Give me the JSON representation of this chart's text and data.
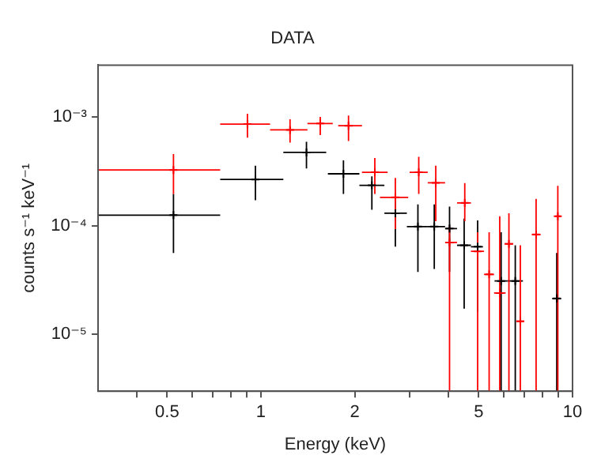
{
  "chart_data": {
    "type": "scatter",
    "title": "DATA",
    "xlabel": "Energy (keV)",
    "ylabel": "counts s⁻¹ keV⁻¹",
    "log": "xy",
    "grid": false,
    "legend": false,
    "marker": "cross",
    "xlim": [
      0.3,
      10
    ],
    "xticks": [
      {
        "value": 0.4,
        "label": null
      },
      0.5,
      {
        "value": 0.6,
        "label": null
      },
      {
        "value": 0.7,
        "label": null
      },
      {
        "value": 0.8,
        "label": null
      },
      {
        "value": 0.9,
        "label": null
      },
      1,
      2,
      {
        "value": 3,
        "label": null
      },
      {
        "value": 4,
        "label": null
      },
      5,
      {
        "value": 6,
        "label": null
      },
      {
        "value": 7,
        "label": null
      },
      {
        "value": 8,
        "label": null
      },
      {
        "value": 9,
        "label": null
      },
      10
    ],
    "ylim": [
      3e-06,
      0.003
    ],
    "yticks": [
      {
        "value": 1e-05,
        "label": "10⁻⁵"
      },
      {
        "value": 0.0001,
        "label": "10⁻⁴"
      },
      {
        "value": 0.001,
        "label": "10⁻³"
      }
    ],
    "series": [
      {
        "color": "#000000",
        "x": [
          0.524,
          0.96,
          1.4,
          1.84,
          2.27,
          2.7,
          3.19,
          3.6,
          4.03,
          4.49,
          4.96,
          5.9,
          6.55,
          8.9
        ],
        "values": [
          0.000125,
          0.000266,
          0.000472,
          0.0003,
          0.000235,
          0.00013,
          9.8e-05,
          9.8e-05,
          9.4e-05,
          6.6e-05,
          6.4e-05,
          3.1e-05,
          3.1e-05,
          2.14e-05
        ],
        "xerrors": [
          [
            0.3,
            0.74
          ],
          [
            0.74,
            1.18
          ],
          [
            1.18,
            1.62
          ],
          [
            1.64,
            2.07
          ],
          [
            2.07,
            2.49
          ],
          [
            2.49,
            2.94
          ],
          [
            2.94,
            3.43
          ],
          [
            3.43,
            3.9
          ],
          [
            3.9,
            4.26
          ],
          [
            4.26,
            4.72
          ],
          [
            4.72,
            5.16
          ],
          [
            5.62,
            6.18
          ],
          [
            6.18,
            6.93
          ],
          [
            8.6,
            9.2
          ]
        ],
        "errors": [
          [
            5.6e-05,
            0.000196
          ],
          [
            0.000171,
            0.000356
          ],
          [
            0.000336,
            0.00059
          ],
          [
            0.000196,
            0.000398
          ],
          [
            0.00014,
            0.000284
          ],
          [
            6.4e-05,
            0.000181
          ],
          [
            3.75e-05,
            0.000157
          ],
          [
            4e-05,
            0.000157
          ],
          [
            3.75e-05,
            0.00015
          ],
          [
            1.72e-05,
            0.000116
          ],
          [
            1.62e-05,
            0.000112
          ],
          [
            3e-06,
            8.7e-05
          ],
          [
            3e-06,
            6.6e-05
          ],
          [
            3e-06,
            5.6e-05
          ]
        ]
      },
      {
        "color": "#ff0000",
        "x": [
          0.524,
          0.905,
          1.24,
          1.55,
          1.91,
          2.32,
          2.7,
          3.21,
          3.64,
          4.03,
          4.51,
          4.96,
          5.4,
          5.84,
          6.25,
          6.8,
          7.64,
          8.97
        ],
        "values": [
          0.000325,
          0.00086,
          0.00076,
          0.00087,
          0.00083,
          0.00031,
          0.000182,
          0.00031,
          0.000248,
          7e-05,
          0.000162,
          5.8e-05,
          3.56e-05,
          2.4e-05,
          6.8e-05,
          1.32e-05,
          8.3e-05,
          0.000122
        ],
        "xerrors": [
          [
            0.3,
            0.74
          ],
          [
            0.74,
            1.07
          ],
          [
            1.07,
            1.41
          ],
          [
            1.41,
            1.7
          ],
          [
            1.77,
            2.11
          ],
          [
            2.11,
            2.55
          ],
          [
            2.41,
            2.97
          ],
          [
            3.0,
            3.43
          ],
          [
            3.43,
            3.9
          ],
          [
            3.9,
            4.26
          ],
          [
            4.26,
            4.72
          ],
          [
            4.72,
            5.2
          ],
          [
            5.2,
            5.6
          ],
          [
            5.6,
            6.1
          ],
          [
            6.05,
            6.45
          ],
          [
            6.6,
            7.0
          ],
          [
            7.4,
            7.9
          ],
          [
            8.8,
            9.15
          ]
        ],
        "errors": [
          [
            0.000196,
            0.000456
          ],
          [
            0.000645,
            0.00107
          ],
          [
            0.00058,
            0.00095
          ],
          [
            0.00068,
            0.001
          ],
          [
            0.0006,
            0.00103
          ],
          [
            0.000196,
            0.00042
          ],
          [
            9.3e-05,
            0.000275
          ],
          [
            0.000196,
            0.00043
          ],
          [
            0.00011,
            0.000356
          ],
          [
            3e-06,
            9.8e-05
          ],
          [
            0.00011,
            0.000246
          ],
          [
            3e-06,
            8.7e-05
          ],
          [
            3e-06,
            8.7e-05
          ],
          [
            3e-06,
            0.000122
          ],
          [
            3e-06,
            0.00013
          ],
          [
            3e-06,
            6.6e-05
          ],
          [
            3e-06,
            0.000176
          ],
          [
            3e-06,
            0.000232
          ]
        ]
      }
    ]
  }
}
